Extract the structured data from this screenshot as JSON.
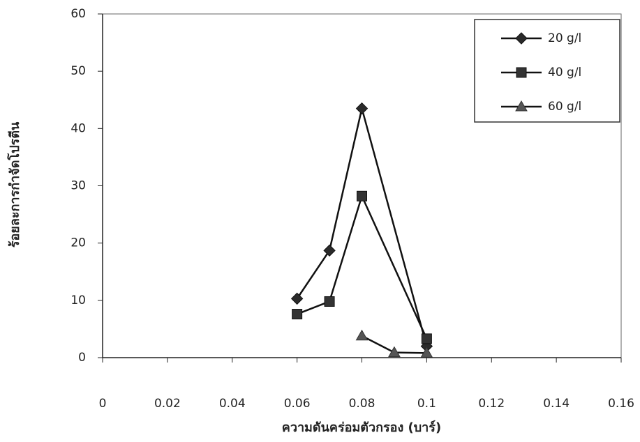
{
  "chart_data": {
    "type": "line",
    "xlabel": "ความดันคร่อมตัวกรอง (บาร์)",
    "ylabel": "ร้อยละการกำจัดโปรตีน",
    "xlim": [
      0,
      0.16
    ],
    "xticks": [
      0,
      0.02,
      0.04,
      0.06,
      0.08,
      0.1,
      0.12,
      0.14,
      0.16
    ],
    "ylim": [
      0,
      60
    ],
    "yticks": [
      0,
      10,
      20,
      30,
      40,
      50,
      60
    ],
    "legend": "upper right",
    "series": [
      {
        "name": "20 g/l",
        "marker": "diamond",
        "color": "#2a2a2a",
        "x": [
          0.06,
          0.07,
          0.08,
          0.1
        ],
        "values": [
          10.3,
          18.7,
          43.5,
          2.0
        ]
      },
      {
        "name": "40 g/l",
        "marker": "square",
        "color": "#333333",
        "x": [
          0.06,
          0.07,
          0.08,
          0.1
        ],
        "values": [
          7.6,
          9.8,
          28.2,
          3.3
        ]
      },
      {
        "name": "60 g/l",
        "marker": "triangle",
        "color": "#555555",
        "x": [
          0.08,
          0.09,
          0.1
        ],
        "values": [
          3.8,
          0.9,
          0.8
        ]
      }
    ]
  }
}
